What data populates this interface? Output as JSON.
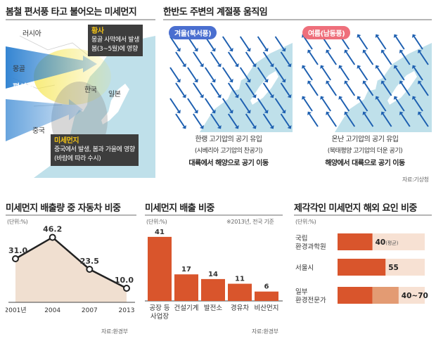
{
  "top_left": {
    "title": "봄철 편서풍 타고 불어오는 미세먼지",
    "map_labels": {
      "russia": "러시아",
      "mongolia": "몽골",
      "westerlies": "편서풍",
      "korea": "한국",
      "japan": "일본",
      "china": "중국"
    },
    "hwangsa": {
      "heading": "황사",
      "line1": "몽골 사막에서 발생",
      "line2": "봄(3~5월)에 영향"
    },
    "pm": {
      "heading": "미세먼지",
      "line1": "중국에서 발생, 봄과 가을에 영향",
      "line2": "(바람에 따라 수시)"
    }
  },
  "top_right": {
    "title": "한반도 주변의 계절풍 움직임",
    "winter": {
      "tag": "겨울(북서풍)",
      "line1": "한랭 고기압의 공기 유입",
      "line2": "(시베리아 고기압의 찬공기)",
      "line3": "대륙에서 해양으로 공기 이동"
    },
    "summer": {
      "tag": "여름(남동풍)",
      "line1": "온난 고기압의 공기 유입",
      "line2": "(북태평양 고기압의 더운 공기)",
      "line3": "해양에서 대륙으로 공기 이동"
    },
    "source": "자료:기상청"
  },
  "chart_data": [
    {
      "type": "area",
      "title": "미세먼지 배출량 중 자동차 비중",
      "unit": "(단위:%)",
      "x": [
        "2001년",
        "2004",
        "2007",
        "2013"
      ],
      "values": [
        31.0,
        46.2,
        23.5,
        10.0
      ],
      "value_labels": [
        "31.0",
        "46.2",
        "23.5",
        "10.0"
      ],
      "ylim": [
        0,
        50
      ],
      "source": "자료:환경부"
    },
    {
      "type": "bar",
      "title": "미세먼지 배출 비중",
      "unit": "(단위:%)",
      "note": "※2013년, 전국 기준",
      "categories": [
        [
          "공장 등",
          "사업장"
        ],
        [
          "건설기계"
        ],
        [
          "발전소"
        ],
        [
          "경유차"
        ],
        [
          "비산먼지"
        ]
      ],
      "values": [
        41,
        17,
        14,
        11,
        6
      ],
      "ylim": [
        0,
        45
      ],
      "source": "자료:환경부"
    },
    {
      "type": "bar",
      "orientation": "horizontal",
      "title": "제각각인 미세먼지 해외 요인 비중",
      "unit": "(단위:%)",
      "categories": [
        [
          "국립",
          "환경과학원"
        ],
        [
          "서울시"
        ],
        [
          "일부",
          "환경전문가"
        ]
      ],
      "values": [
        40,
        55,
        70
      ],
      "range_low": [
        null,
        null,
        40
      ],
      "value_labels": [
        "40",
        "55",
        "40~70"
      ],
      "suffixes": [
        "(평균)",
        "",
        ""
      ],
      "xlim": [
        0,
        100
      ]
    }
  ],
  "colors": {
    "bar": "#d9552c",
    "bar_light": "#e39b73",
    "bar_track": "#f7e1d3",
    "area": "#f0dfd0",
    "sea": "#bfe0ea",
    "arrow": "#1d5fb0",
    "winter_tag": "#4a6fd0",
    "summer_tag": "#ee6f7b"
  }
}
